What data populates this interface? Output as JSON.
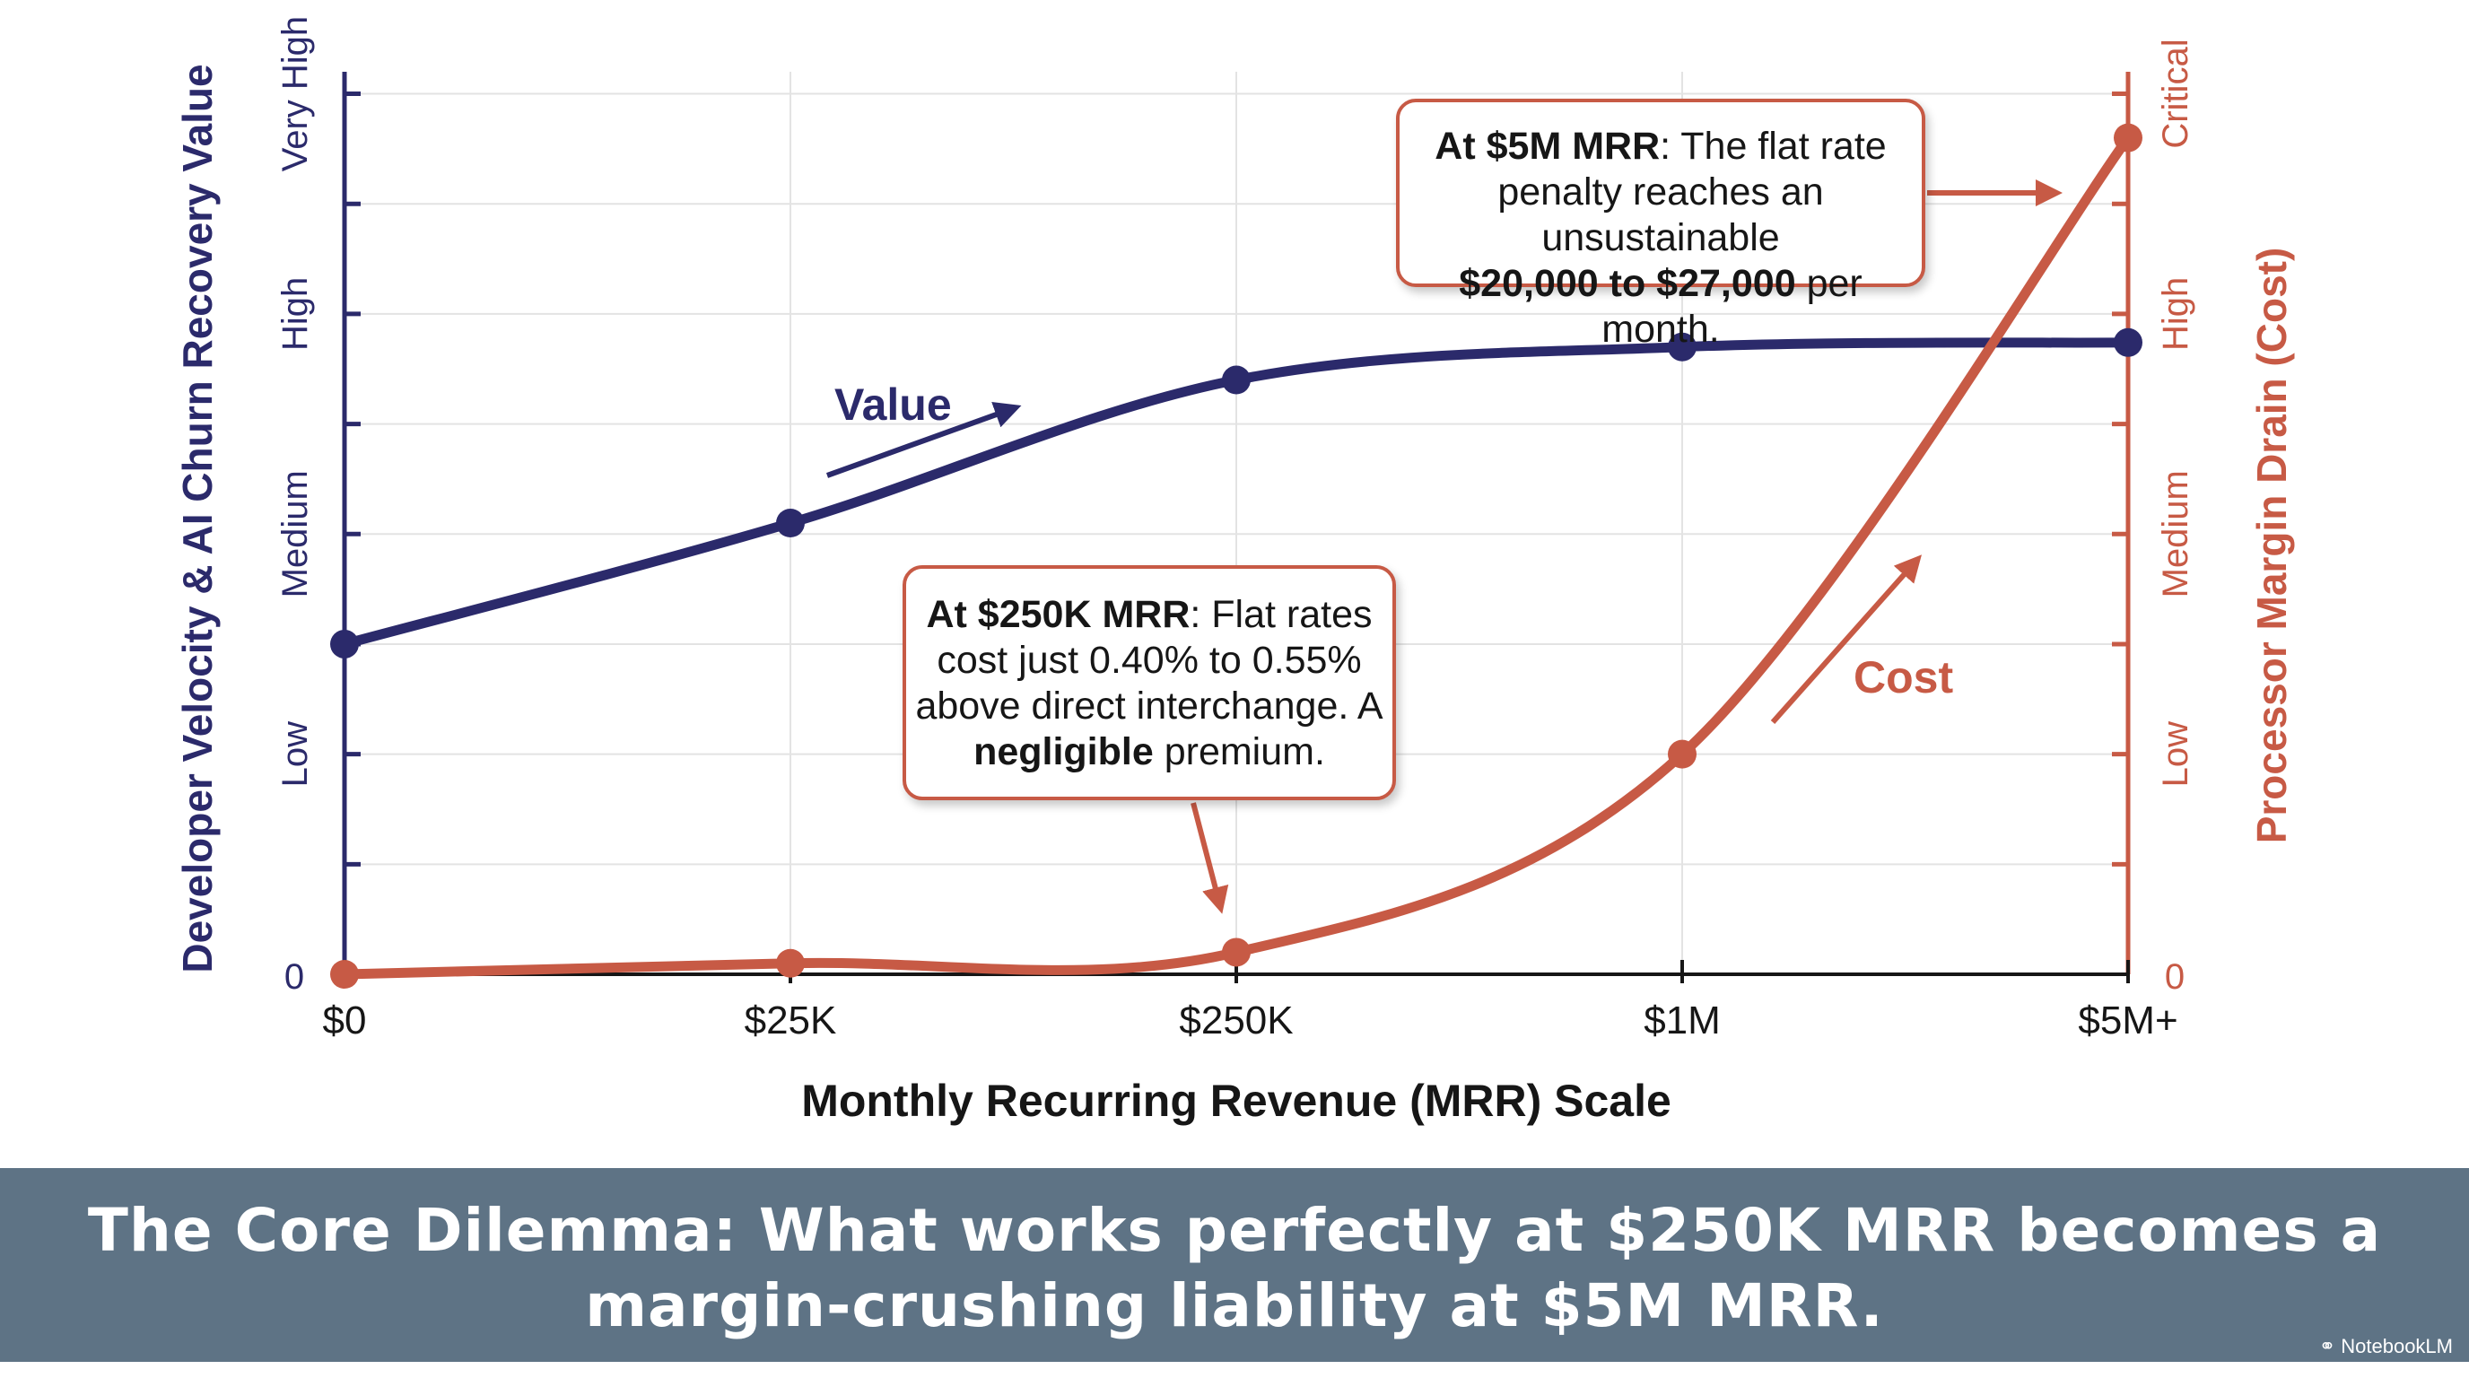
{
  "chart_data": {
    "type": "line",
    "categories": [
      "$0",
      "$25K",
      "$250K",
      "$1M",
      "$5M+"
    ],
    "xlabel": "Monthly Recurring Revenue (MRR) Scale",
    "ylabel_left": "Developer Velocity & AI Churn Recovery Value",
    "ylabel_right": "Processor Margin Drain (Cost)",
    "yticks_left": [
      "0",
      "Low",
      "Medium",
      "High",
      "Very High"
    ],
    "yticks_right": [
      "0",
      "Low",
      "Medium",
      "High",
      "Critical"
    ],
    "ylim": [
      0,
      4.1
    ],
    "grid": true,
    "series": [
      {
        "name": "Value",
        "color": "#2b2a6b",
        "values": [
          1.5,
          2.05,
          2.7,
          2.85,
          2.87
        ]
      },
      {
        "name": "Cost",
        "color": "#c75a45",
        "values": [
          0.0,
          0.05,
          0.1,
          1.0,
          3.8
        ]
      }
    ],
    "annotations": {
      "mrr_5m": {
        "bold_lead": "At $5M MRR",
        "text_a": ": The flat rate",
        "text_b": "penalty reaches an unsustainable",
        "bold_range": "$20,000 to $27,000",
        "text_c": " per month."
      },
      "mrr_250k": {
        "bold_lead": "At $250K MRR",
        "text_a": ": Flat rates",
        "text_b": "cost just 0.40% to 0.55%",
        "text_c": "above direct interchange. A",
        "bold_word": "negligible",
        "text_d": " premium."
      }
    }
  },
  "banner": {
    "line1": "The Core Dilemma: What works perfectly at $250K MRR becomes a",
    "line2": "margin-crushing liability at $5M MRR."
  },
  "watermark": "NotebookLM"
}
